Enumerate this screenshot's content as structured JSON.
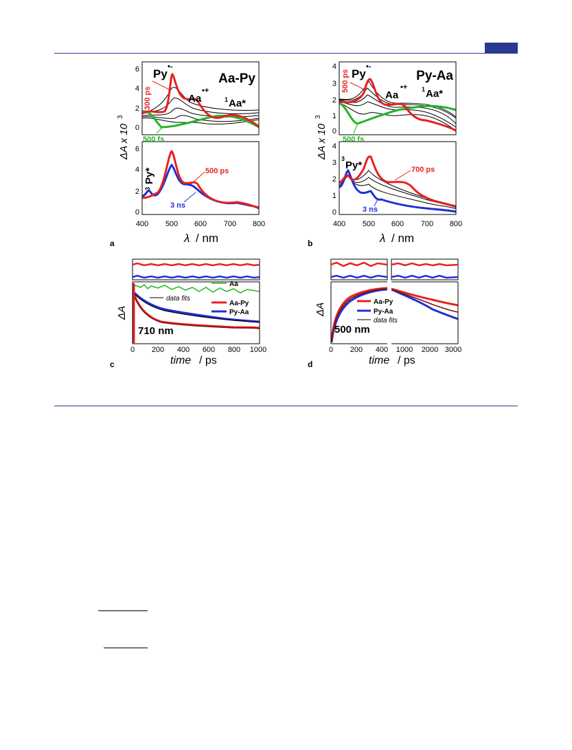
{
  "colors": {
    "red": "#e8211f",
    "blue": "#1f2fd8",
    "green": "#22b522",
    "black": "#000000",
    "darkred": "#7a0f12",
    "accent": "#2b3a8f"
  },
  "figure": {
    "panel_a": {
      "letter": "a",
      "title": "Aa-Py",
      "ylabel": "ΔA x 10",
      "ylabel_exp": "3",
      "xlabel_sym": "λ",
      "xlabel_unit": "/ nm",
      "xticks": [
        "400",
        "500",
        "600",
        "700",
        "800"
      ],
      "top_yticks": [
        "0",
        "2",
        "4",
        "6"
      ],
      "bot_yticks": [
        "0",
        "2",
        "4",
        "6"
      ],
      "lbl_py": "Py",
      "lbl_py_sup": "•-",
      "lbl_aa": "Aa",
      "lbl_aa_sup": "•+",
      "lbl_aastar_sup": "1",
      "lbl_aastar": "Aa*",
      "lbl_top_red": "300 ps",
      "lbl_top_green": "500 fs",
      "lbl_bot_red": "500 ps",
      "lbl_bot_blue": "3 ns",
      "lbl_3py_sup": "3",
      "lbl_3py": "Py*"
    },
    "panel_b": {
      "letter": "b",
      "title": "Py-Aa",
      "ylabel": "ΔA x 10",
      "ylabel_exp": "3",
      "xlabel_sym": "λ",
      "xlabel_unit": "/ nm",
      "xticks": [
        "400",
        "500",
        "600",
        "700",
        "800"
      ],
      "top_yticks": [
        "0",
        "1",
        "2",
        "3",
        "4"
      ],
      "bot_yticks": [
        "0",
        "1",
        "2",
        "3",
        "4"
      ],
      "lbl_py": "Py",
      "lbl_py_sup": "•-",
      "lbl_aa": "Aa",
      "lbl_aa_sup": "•+",
      "lbl_aastar_sup": "1",
      "lbl_aastar": "Aa*",
      "lbl_top_red": "500 ps",
      "lbl_top_green": "500 fs",
      "lbl_bot_red": "700 ps",
      "lbl_bot_blue": "3 ns",
      "lbl_3py_sup": "3",
      "lbl_3py": "Py*"
    },
    "panel_c": {
      "letter": "c",
      "ylabel": "ΔA",
      "xlabel_sym": "time",
      "xlabel_unit": "/ ps",
      "xticks": [
        "0",
        "200",
        "400",
        "600",
        "800",
        "1000"
      ],
      "wavelength": "710 nm",
      "legend": [
        "Aa",
        "data fits",
        "Aa-Py",
        "Py-Aa"
      ]
    },
    "panel_d": {
      "letter": "d",
      "ylabel": "ΔA",
      "xlabel_sym": "time",
      "xlabel_unit": "/ ps",
      "xticks_left": [
        "0",
        "200",
        "400"
      ],
      "xticks_right": [
        "1000",
        "2000",
        "3000"
      ],
      "wavelength": "500 nm",
      "legend": [
        "Aa-Py",
        "Py-Aa",
        "data fits"
      ]
    }
  }
}
